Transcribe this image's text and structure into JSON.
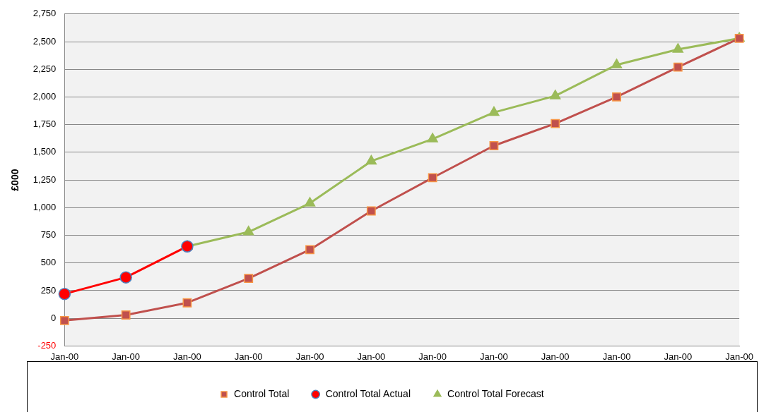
{
  "chart_data": {
    "type": "line",
    "ylabel": "£000",
    "categories": [
      "Jan-00",
      "Jan-00",
      "Jan-00",
      "Jan-00",
      "Jan-00",
      "Jan-00",
      "Jan-00",
      "Jan-00",
      "Jan-00",
      "Jan-00",
      "Jan-00",
      "Jan-00"
    ],
    "series": [
      {
        "name": "Control Total",
        "color": "#c0504d",
        "marker": "square",
        "values": [
          -20,
          30,
          140,
          360,
          620,
          970,
          1270,
          1560,
          1760,
          2000,
          2270,
          2530
        ]
      },
      {
        "name": "Control Total Actual",
        "color": "#ff0000",
        "marker": "circle",
        "values": [
          220,
          370,
          650,
          null,
          null,
          null,
          null,
          null,
          null,
          null,
          null,
          null
        ]
      },
      {
        "name": "Control Total Forecast",
        "color": "#9bbb59",
        "marker": "triangle",
        "values": [
          null,
          null,
          650,
          780,
          1040,
          1420,
          1620,
          1860,
          2010,
          2290,
          2430,
          2530
        ]
      }
    ],
    "ylim": [
      -250,
      2750
    ],
    "yticks": [
      -250,
      0,
      250,
      500,
      750,
      {
        "value": 1000,
        "label": "1,000"
      },
      {
        "value": 1250,
        "label": "1,250"
      },
      {
        "value": 1500,
        "label": "1,500"
      },
      {
        "value": 1750,
        "label": "1,750"
      },
      {
        "value": 2000,
        "label": "2,000"
      },
      {
        "value": 2250,
        "label": "2,250"
      },
      {
        "value": 2500,
        "label": "2,500"
      },
      {
        "value": 2750,
        "label": "2,750"
      }
    ],
    "grid": "y",
    "legend": "bottom"
  }
}
